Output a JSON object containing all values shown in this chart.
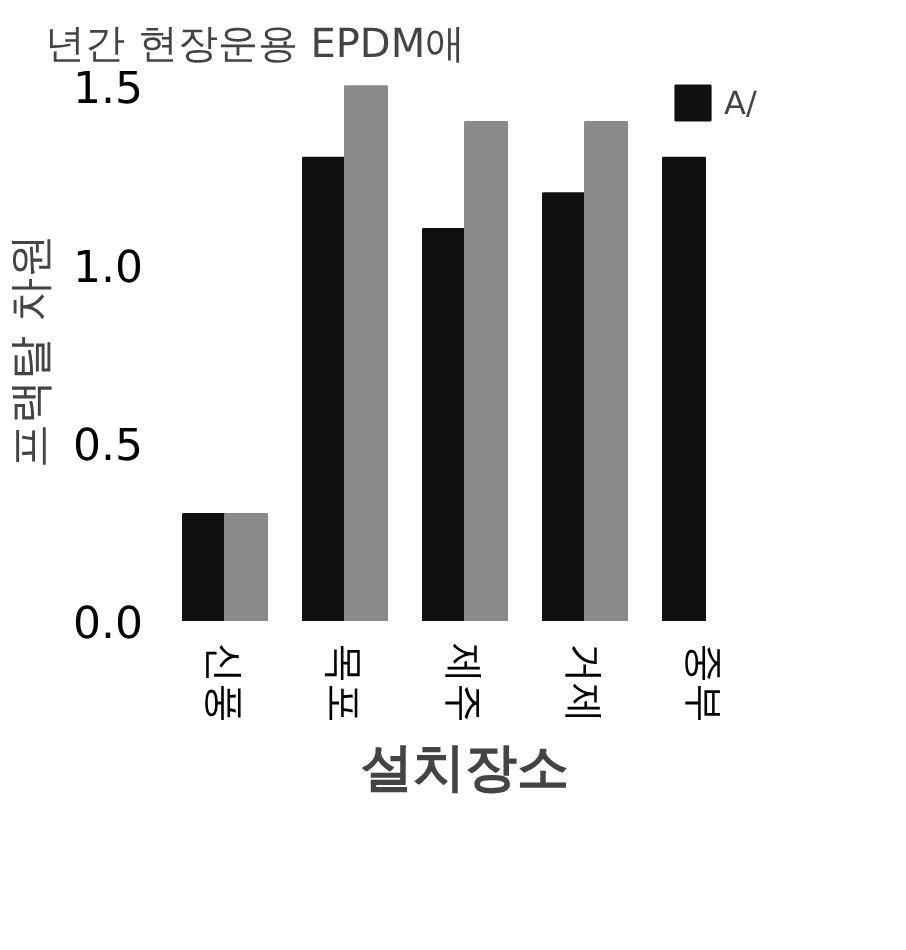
{
  "chart_data": {
    "type": "bar",
    "title": "년간 현장운용 EPDM애",
    "xlabel": "설치장소",
    "ylabel": "프랙탈 차원",
    "categories": [
      "신풍",
      "목포",
      "제주",
      "거제",
      "중부"
    ],
    "series": [
      {
        "name": "A/",
        "color": "#111111",
        "values": [
          0.3,
          1.3,
          1.1,
          1.2,
          1.3
        ]
      },
      {
        "color": "#8a8a8a",
        "values": [
          0.3,
          1.5,
          1.4,
          1.4,
          null
        ]
      }
    ],
    "ylim": [
      0,
      1.5
    ],
    "yticks": [
      {
        "value": 0,
        "label": "0.0"
      },
      {
        "value": 0.5,
        "label": "0.5"
      },
      {
        "value": 1,
        "label": "1.0"
      },
      {
        "value": 1.5,
        "label": "1.5"
      }
    ],
    "grid": false,
    "legend": "top right"
  }
}
